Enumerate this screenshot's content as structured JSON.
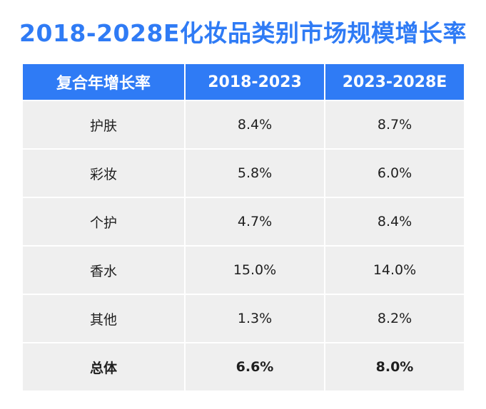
{
  "chart_data": {
    "type": "table",
    "title": "2018-2028E化妆品类别市场规模增长率",
    "columns": [
      "复合年增长率",
      "2018-2023",
      "2023-2028E"
    ],
    "rows": [
      {
        "category": "护肤",
        "period_2018_2023": "8.4%",
        "period_2023_2028e": "8.7%"
      },
      {
        "category": "彩妆",
        "period_2018_2023": "5.8%",
        "period_2023_2028e": "6.0%"
      },
      {
        "category": "个护",
        "period_2018_2023": "4.7%",
        "period_2023_2028e": "8.4%"
      },
      {
        "category": "香水",
        "period_2018_2023": "15.0%",
        "period_2023_2028e": "14.0%"
      },
      {
        "category": "其他",
        "period_2018_2023": "1.3%",
        "period_2023_2028e": "8.2%"
      }
    ],
    "total": {
      "category": "总体",
      "period_2018_2023": "6.6%",
      "period_2023_2028e": "8.0%"
    }
  },
  "colors": {
    "accent": "#2f7bf5",
    "cell_background": "#efefef",
    "header_text": "#ffffff"
  }
}
